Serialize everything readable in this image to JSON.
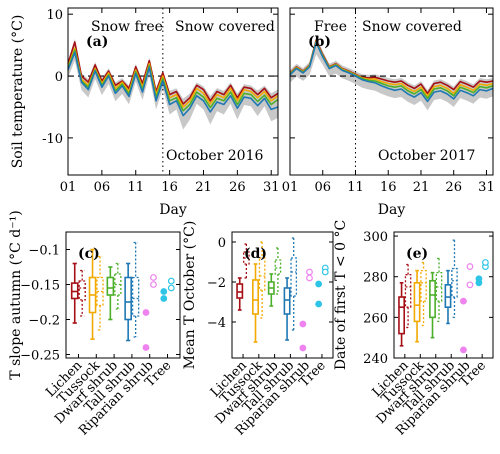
{
  "colors": {
    "lichen": "#a50f15",
    "tussock": "#f2a900",
    "dwarf_shrub": "#4caf2a",
    "tall_shrub": "#1f78b4",
    "riparian_shrub": "#ee82ee",
    "tree": "#2ec4e6",
    "envelope": "#c8c8c8"
  },
  "chart_data": [
    {
      "id": "a",
      "type": "line",
      "panel_label": "(a)",
      "ylabel": "Soil temperature (°C)",
      "xlabel": "Day",
      "ylim": [
        -16,
        11
      ],
      "xlim": [
        1,
        32
      ],
      "yticks": [
        -10,
        0,
        10
      ],
      "xticks": [
        "01",
        "06",
        "11",
        "16",
        "21",
        "26",
        "31"
      ],
      "xtick_values": [
        1,
        6,
        11,
        16,
        21,
        26,
        31
      ],
      "zero_line": "dashed",
      "snow_onset_day": 15,
      "annotations": [
        "Snow free",
        "Snow covered",
        "October 2016"
      ],
      "series": [
        {
          "name": "Lichen",
          "color_key": "lichen",
          "x": [
            1,
            2,
            3,
            4,
            5,
            6,
            7,
            8,
            9,
            10,
            11,
            12,
            13,
            14,
            15,
            16,
            17,
            18,
            19,
            20,
            21,
            22,
            23,
            24,
            25,
            26,
            27,
            28,
            29,
            30,
            31,
            32
          ],
          "y": [
            2.0,
            5.5,
            0.0,
            -1.0,
            1.8,
            -0.8,
            0.8,
            -1.5,
            -0.8,
            -2.0,
            1.5,
            -1.2,
            2.5,
            -2.5,
            0.5,
            -3.0,
            -2.5,
            -4.5,
            -3.5,
            -1.5,
            -2.2,
            -4.0,
            -2.5,
            -3.0,
            -1.5,
            -3.5,
            -1.8,
            -2.0,
            -3.0,
            -2.0,
            -3.5,
            -2.8
          ]
        },
        {
          "name": "Tussock",
          "color_key": "tussock",
          "x": [
            1,
            2,
            3,
            4,
            5,
            6,
            7,
            8,
            9,
            10,
            11,
            12,
            13,
            14,
            15,
            16,
            17,
            18,
            19,
            20,
            21,
            22,
            23,
            24,
            25,
            26,
            27,
            28,
            29,
            30,
            31,
            32
          ],
          "y": [
            1.5,
            4.5,
            -0.5,
            -1.5,
            1.2,
            -1.2,
            0.5,
            -2.0,
            -1.0,
            -2.5,
            1.0,
            -1.8,
            2.0,
            -3.0,
            0.0,
            -3.5,
            -3.0,
            -5.0,
            -4.0,
            -2.0,
            -2.8,
            -4.5,
            -3.0,
            -3.5,
            -2.0,
            -4.0,
            -2.2,
            -2.5,
            -3.5,
            -2.5,
            -4.0,
            -3.2
          ]
        },
        {
          "name": "Dwarf shrub",
          "color_key": "dwarf_shrub",
          "x": [
            1,
            2,
            3,
            4,
            5,
            6,
            7,
            8,
            9,
            10,
            11,
            12,
            13,
            14,
            15,
            16,
            17,
            18,
            19,
            20,
            21,
            22,
            23,
            24,
            25,
            26,
            27,
            28,
            29,
            30,
            31,
            32
          ],
          "y": [
            1.2,
            4.2,
            -0.8,
            -1.8,
            1.0,
            -1.5,
            0.2,
            -2.4,
            -1.3,
            -2.9,
            0.7,
            -2.2,
            1.7,
            -3.5,
            -0.4,
            -4.0,
            -3.5,
            -5.6,
            -4.6,
            -2.6,
            -3.4,
            -5.1,
            -3.6,
            -4.0,
            -2.6,
            -4.6,
            -2.8,
            -3.0,
            -4.1,
            -3.1,
            -4.6,
            -3.8
          ]
        },
        {
          "name": "Tall shrub",
          "color_key": "tall_shrub",
          "x": [
            1,
            2,
            3,
            4,
            5,
            6,
            7,
            8,
            9,
            10,
            11,
            12,
            13,
            14,
            15,
            16,
            17,
            18,
            19,
            20,
            21,
            22,
            23,
            24,
            25,
            26,
            27,
            28,
            29,
            30,
            31,
            32
          ],
          "y": [
            1.0,
            3.8,
            -1.0,
            -2.2,
            0.8,
            -1.8,
            0.0,
            -2.8,
            -1.6,
            -3.3,
            0.4,
            -2.6,
            1.4,
            -4.0,
            -0.8,
            -4.6,
            -4.0,
            -6.4,
            -5.2,
            -3.2,
            -4.0,
            -5.8,
            -4.2,
            -4.6,
            -3.2,
            -5.2,
            -3.4,
            -3.6,
            -4.8,
            -3.6,
            -5.4,
            -5.0
          ]
        }
      ]
    },
    {
      "id": "b",
      "type": "line",
      "panel_label": "(b)",
      "xlabel": "Day",
      "ylim": [
        -16,
        11
      ],
      "xlim": [
        1,
        32
      ],
      "yticks": [
        -10,
        0,
        10
      ],
      "xticks": [
        "01",
        "06",
        "11",
        "16",
        "21",
        "26",
        "31"
      ],
      "xtick_values": [
        1,
        6,
        11,
        16,
        21,
        26,
        31
      ],
      "zero_line": "dashed",
      "snow_onset_day": 11,
      "annotations": [
        "Free",
        "Snow covered",
        "October 2017"
      ],
      "series": [
        {
          "name": "Lichen",
          "color_key": "lichen",
          "x": [
            1,
            2,
            3,
            4,
            5,
            6,
            7,
            8,
            9,
            10,
            11,
            12,
            13,
            14,
            15,
            16,
            17,
            18,
            19,
            20,
            21,
            22,
            23,
            24,
            25,
            26,
            27,
            28,
            29,
            30,
            31,
            32
          ],
          "y": [
            0.5,
            1.5,
            0.8,
            1.8,
            5.8,
            3.5,
            1.5,
            2.0,
            1.2,
            0.8,
            0.3,
            -0.2,
            -0.3,
            -0.2,
            -0.5,
            -0.8,
            -1.0,
            -0.8,
            -1.5,
            -2.0,
            -1.3,
            -2.8,
            -1.2,
            -1.0,
            -1.5,
            -2.2,
            -0.9,
            -1.3,
            -1.8,
            -0.8,
            -1.0,
            -0.8
          ]
        },
        {
          "name": "Tussock",
          "color_key": "tussock",
          "x": [
            1,
            2,
            3,
            4,
            5,
            6,
            7,
            8,
            9,
            10,
            11,
            12,
            13,
            14,
            15,
            16,
            17,
            18,
            19,
            20,
            21,
            22,
            23,
            24,
            25,
            26,
            27,
            28,
            29,
            30,
            31,
            32
          ],
          "y": [
            0.4,
            1.4,
            0.7,
            1.7,
            5.6,
            3.3,
            1.4,
            1.9,
            1.1,
            0.7,
            0.2,
            -0.3,
            -0.5,
            -0.5,
            -0.9,
            -1.2,
            -1.4,
            -1.2,
            -2.0,
            -2.5,
            -1.8,
            -3.2,
            -1.7,
            -1.5,
            -2.0,
            -2.8,
            -1.4,
            -1.8,
            -2.3,
            -1.3,
            -1.5,
            -1.2
          ]
        },
        {
          "name": "Dwarf shrub",
          "color_key": "dwarf_shrub",
          "x": [
            1,
            2,
            3,
            4,
            5,
            6,
            7,
            8,
            9,
            10,
            11,
            12,
            13,
            14,
            15,
            16,
            17,
            18,
            19,
            20,
            21,
            22,
            23,
            24,
            25,
            26,
            27,
            28,
            29,
            30,
            31,
            32
          ],
          "y": [
            0.3,
            1.3,
            0.6,
            1.6,
            5.5,
            3.2,
            1.3,
            1.8,
            1.0,
            0.6,
            0.1,
            -0.4,
            -0.7,
            -0.8,
            -1.2,
            -1.6,
            -1.8,
            -1.6,
            -2.4,
            -2.9,
            -2.2,
            -3.6,
            -2.1,
            -1.9,
            -2.4,
            -3.2,
            -1.8,
            -2.2,
            -2.7,
            -1.7,
            -1.9,
            -1.6
          ]
        },
        {
          "name": "Tall shrub",
          "color_key": "tall_shrub",
          "x": [
            1,
            2,
            3,
            4,
            5,
            6,
            7,
            8,
            9,
            10,
            11,
            12,
            13,
            14,
            15,
            16,
            17,
            18,
            19,
            20,
            21,
            22,
            23,
            24,
            25,
            26,
            27,
            28,
            29,
            30,
            31,
            32
          ],
          "y": [
            0.2,
            1.2,
            0.5,
            1.5,
            5.4,
            3.1,
            1.2,
            1.7,
            0.9,
            0.5,
            0.0,
            -0.6,
            -0.9,
            -1.1,
            -1.6,
            -2.0,
            -2.3,
            -2.1,
            -2.9,
            -3.4,
            -2.7,
            -4.1,
            -2.6,
            -2.4,
            -2.9,
            -3.7,
            -2.3,
            -2.7,
            -3.2,
            -2.2,
            -2.4,
            -2.0
          ]
        }
      ]
    },
    {
      "id": "c",
      "type": "box",
      "panel_label": "(c)",
      "ylabel": "T slope autumn (°C d⁻¹)",
      "ylim": [
        -0.255,
        -0.075
      ],
      "yticks": [
        -0.25,
        -0.2,
        -0.15,
        -0.1
      ],
      "ytick_labels": [
        "−0.25",
        "−0.2",
        "−0.15",
        "−0.1"
      ],
      "categories": [
        "Lichen",
        "Tussock",
        "Dwarf shrub",
        "Tall shrub",
        "Riparian shrub",
        "Tree"
      ],
      "boxes": [
        {
          "cat": 0,
          "year": 2016,
          "min": -0.205,
          "q1": -0.17,
          "median": -0.16,
          "q3": -0.148,
          "max": -0.12
        },
        {
          "cat": 0,
          "year": 2017,
          "min": -0.195,
          "q1": -0.172,
          "median": -0.155,
          "q3": -0.145,
          "max": -0.13
        },
        {
          "cat": 1,
          "year": 2016,
          "min": -0.228,
          "q1": -0.19,
          "median": -0.165,
          "q3": -0.14,
          "max": -0.1
        },
        {
          "cat": 1,
          "year": 2017,
          "min": -0.215,
          "q1": -0.18,
          "median": -0.16,
          "q3": -0.14,
          "max": -0.11
        },
        {
          "cat": 2,
          "year": 2016,
          "min": -0.2,
          "q1": -0.165,
          "median": -0.155,
          "q3": -0.14,
          "max": -0.125
        },
        {
          "cat": 2,
          "year": 2017,
          "min": -0.185,
          "q1": -0.165,
          "median": -0.15,
          "q3": -0.135,
          "max": -0.12
        },
        {
          "cat": 3,
          "year": 2016,
          "min": -0.23,
          "q1": -0.2,
          "median": -0.175,
          "q3": -0.14,
          "max": -0.12
        },
        {
          "cat": 3,
          "year": 2017,
          "min": -0.225,
          "q1": -0.195,
          "median": -0.17,
          "q3": -0.14,
          "max": -0.09
        }
      ],
      "points": [
        {
          "cat": 4,
          "year": 2016,
          "values": [
            -0.19,
            -0.24
          ]
        },
        {
          "cat": 4,
          "year": 2017,
          "values": [
            -0.14,
            -0.15
          ]
        },
        {
          "cat": 5,
          "year": 2016,
          "values": [
            -0.16,
            -0.17
          ]
        },
        {
          "cat": 5,
          "year": 2017,
          "values": [
            -0.145,
            -0.155
          ]
        }
      ]
    },
    {
      "id": "d",
      "type": "box",
      "panel_label": "(d)",
      "ylabel": "Mean T October (°C)",
      "ylim": [
        -5.8,
        0.5
      ],
      "yticks": [
        -4,
        -2,
        0
      ],
      "ytick_labels": [
        "−4",
        "−2",
        "0"
      ],
      "categories": [
        "Lichen",
        "Tussock",
        "Dwarf shrub",
        "Tall shrub",
        "Riparian shrub",
        "Tree"
      ],
      "boxes": [
        {
          "cat": 0,
          "year": 2016,
          "min": -3.4,
          "q1": -2.8,
          "median": -2.5,
          "q3": -2.1,
          "max": -1.8
        },
        {
          "cat": 0,
          "year": 2017,
          "min": -1.8,
          "q1": -1.1,
          "median": -0.8,
          "q3": -0.5,
          "max": -0.1
        },
        {
          "cat": 1,
          "year": 2016,
          "min": -5.0,
          "q1": -3.6,
          "median": -2.9,
          "q3": -1.9,
          "max": -1.1
        },
        {
          "cat": 1,
          "year": 2017,
          "min": -3.8,
          "q1": -2.4,
          "median": -1.7,
          "q3": -0.8,
          "max": 0.0
        },
        {
          "cat": 2,
          "year": 2016,
          "min": -3.2,
          "q1": -2.6,
          "median": -2.3,
          "q3": -2.0,
          "max": -1.6
        },
        {
          "cat": 2,
          "year": 2017,
          "min": -2.6,
          "q1": -1.6,
          "median": -1.3,
          "q3": -0.9,
          "max": -0.3
        },
        {
          "cat": 3,
          "year": 2016,
          "min": -4.9,
          "q1": -3.6,
          "median": -2.9,
          "q3": -2.3,
          "max": -1.8
        },
        {
          "cat": 3,
          "year": 2017,
          "min": -4.4,
          "q1": -2.7,
          "median": -1.5,
          "q3": -0.8,
          "max": 0.2
        }
      ],
      "points": [
        {
          "cat": 4,
          "year": 2016,
          "values": [
            -4.1,
            -5.3
          ]
        },
        {
          "cat": 4,
          "year": 2017,
          "values": [
            -1.5,
            -1.8
          ]
        },
        {
          "cat": 5,
          "year": 2016,
          "values": [
            -2.1,
            -3.1
          ]
        },
        {
          "cat": 5,
          "year": 2017,
          "values": [
            -1.3,
            -1.5
          ]
        }
      ]
    },
    {
      "id": "e",
      "type": "box",
      "panel_label": "(e)",
      "ylabel": "Date of first T < 0 °C",
      "ylim": [
        240,
        302
      ],
      "yticks": [
        240,
        260,
        280,
        300
      ],
      "ytick_labels": [
        "240",
        "260",
        "280",
        "300"
      ],
      "categories": [
        "Lichen",
        "Tussock",
        "Dwarf shrub",
        "Tall shrub",
        "Riparian shrub",
        "Tree"
      ],
      "boxes": [
        {
          "cat": 0,
          "year": 2016,
          "min": 246,
          "q1": 252,
          "median": 265,
          "q3": 270,
          "max": 277
        },
        {
          "cat": 0,
          "year": 2017,
          "min": 255,
          "q1": 265,
          "median": 275,
          "q3": 281,
          "max": 286
        },
        {
          "cat": 1,
          "year": 2016,
          "min": 248,
          "q1": 258,
          "median": 266,
          "q3": 277,
          "max": 283
        },
        {
          "cat": 1,
          "year": 2017,
          "min": 256,
          "q1": 268,
          "median": 277,
          "q3": 283,
          "max": 287
        },
        {
          "cat": 2,
          "year": 2016,
          "min": 250,
          "q1": 260,
          "median": 271,
          "q3": 278,
          "max": 282
        },
        {
          "cat": 2,
          "year": 2017,
          "min": 258,
          "q1": 268,
          "median": 275,
          "q3": 282,
          "max": 289
        },
        {
          "cat": 3,
          "year": 2016,
          "min": 257,
          "q1": 265,
          "median": 270,
          "q3": 276,
          "max": 283
        },
        {
          "cat": 3,
          "year": 2017,
          "min": 260,
          "q1": 270,
          "median": 278,
          "q3": 284,
          "max": 298
        }
      ],
      "points": [
        {
          "cat": 4,
          "year": 2016,
          "values": [
            268,
            244
          ]
        },
        {
          "cat": 4,
          "year": 2017,
          "values": [
            276,
            285
          ]
        },
        {
          "cat": 5,
          "year": 2016,
          "values": [
            277,
            279
          ]
        },
        {
          "cat": 5,
          "year": 2017,
          "values": [
            285,
            287
          ]
        }
      ]
    }
  ]
}
